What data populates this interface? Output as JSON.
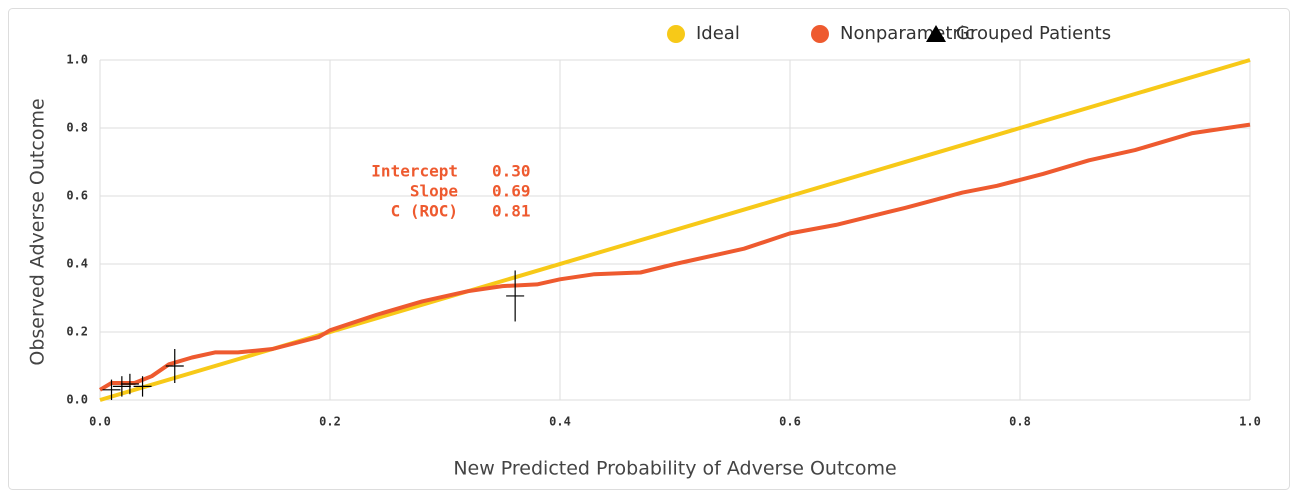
{
  "chart_data": {
    "type": "calibration",
    "x_label": "New Predicted Probability of Adverse Outcome",
    "y_label": "Observed Adverse Outcome",
    "xlim": [
      0,
      1
    ],
    "ylim": [
      0,
      1
    ],
    "xticks": [
      {
        "value": 0,
        "label": "0.0"
      },
      0.2,
      0.4,
      0.6,
      0.8,
      {
        "value": 1,
        "label": "1.0"
      }
    ],
    "yticks": [
      {
        "value": 0,
        "label": "0.0"
      },
      0.2,
      0.4,
      0.6,
      0.8,
      {
        "value": 1,
        "label": "1.0"
      }
    ],
    "grid": true,
    "legend": "top-right",
    "series": [
      {
        "name": "Ideal",
        "color": "#f7c918",
        "kind": "line",
        "x": [
          0,
          1
        ],
        "values": [
          0,
          1
        ]
      },
      {
        "name": "Nonparametric",
        "color": "#ee5a2f",
        "kind": "line",
        "x": [
          0,
          0.01,
          0.02,
          0.03,
          0.045,
          0.06,
          0.08,
          0.1,
          0.12,
          0.15,
          0.19,
          0.2,
          0.24,
          0.28,
          0.32,
          0.35,
          0.38,
          0.4,
          0.43,
          0.47,
          0.5,
          0.54,
          0.56,
          0.6,
          0.64,
          0.7,
          0.75,
          0.78,
          0.82,
          0.86,
          0.9,
          0.95,
          1.0
        ],
        "values": [
          0.03,
          0.05,
          0.05,
          0.05,
          0.07,
          0.105,
          0.125,
          0.14,
          0.14,
          0.15,
          0.185,
          0.205,
          0.25,
          0.29,
          0.32,
          0.335,
          0.34,
          0.355,
          0.37,
          0.375,
          0.4,
          0.43,
          0.445,
          0.49,
          0.515,
          0.565,
          0.61,
          0.63,
          0.665,
          0.705,
          0.735,
          0.785,
          0.81
        ]
      },
      {
        "name": "Grouped Patients",
        "color": "#000000",
        "kind": "points",
        "x": [
          0.01,
          0.019,
          0.026,
          0.037,
          0.065,
          0.361
        ],
        "values": [
          0.03,
          0.04,
          0.047,
          0.04,
          0.1,
          0.306
        ],
        "errors": [
          0.03,
          0.03,
          0.03,
          0.03,
          0.05,
          0.075
        ]
      }
    ],
    "annotations": [
      {
        "label": "Intercept",
        "value": "0.30"
      },
      {
        "label": "Slope",
        "value": "0.69"
      },
      {
        "label": "C (ROC)",
        "value": "0.81"
      }
    ]
  }
}
